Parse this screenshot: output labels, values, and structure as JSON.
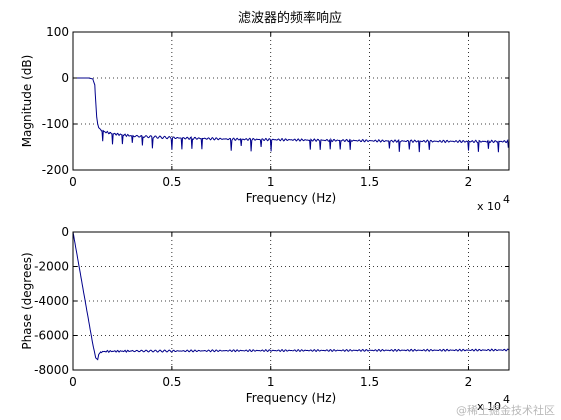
{
  "watermark": "@稀土掘金技术社区",
  "chart_data": [
    {
      "type": "line",
      "title": "滤波器的频率响应",
      "xlabel": "Frequency (Hz)",
      "ylabel": "Magnitude (dB)",
      "x_multiplier": "x 10",
      "x_multiplier_exp": "4",
      "xlim": [
        0,
        22050
      ],
      "ylim": [
        -200,
        100
      ],
      "xticks": [
        0,
        0.5,
        1,
        1.5,
        2
      ],
      "xtick_scale": 10000,
      "yticks": [
        100,
        0,
        -100,
        -200
      ],
      "grid": "dotted",
      "line_color": "#00008b",
      "series": [
        {
          "x": [
            0,
            500,
            800,
            1000,
            1100,
            1150,
            1200,
            1250,
            1300,
            1400,
            1600,
            2000,
            3000,
            5000,
            8000,
            12000,
            16000,
            20000,
            22050
          ],
          "y": [
            0,
            0,
            0,
            -2,
            -15,
            -50,
            -85,
            -100,
            -108,
            -112,
            -117,
            -121,
            -126,
            -130,
            -133,
            -135,
            -137,
            -138,
            -138
          ]
        }
      ]
    },
    {
      "type": "line",
      "title": "",
      "xlabel": "Frequency (Hz)",
      "ylabel": "Phase (degrees)",
      "x_multiplier": "x 10",
      "x_multiplier_exp": "4",
      "xlim": [
        0,
        22050
      ],
      "ylim": [
        -8000,
        0
      ],
      "xticks": [
        0,
        0.5,
        1,
        1.5,
        2
      ],
      "xtick_scale": 10000,
      "yticks": [
        0,
        -2000,
        -4000,
        -6000,
        -8000
      ],
      "grid": "dotted",
      "line_color": "#00008b",
      "series": [
        {
          "x": [
            0,
            200,
            400,
            600,
            800,
            1000,
            1150,
            1250,
            1300,
            1400,
            1700,
            3000,
            5000,
            8000,
            12000,
            16000,
            20000,
            22050
          ],
          "y": [
            0,
            -1300,
            -2600,
            -3900,
            -5200,
            -6500,
            -7300,
            -7400,
            -7100,
            -6950,
            -6920,
            -6900,
            -6900,
            -6880,
            -6870,
            -6860,
            -6850,
            -6840
          ]
        }
      ]
    }
  ]
}
